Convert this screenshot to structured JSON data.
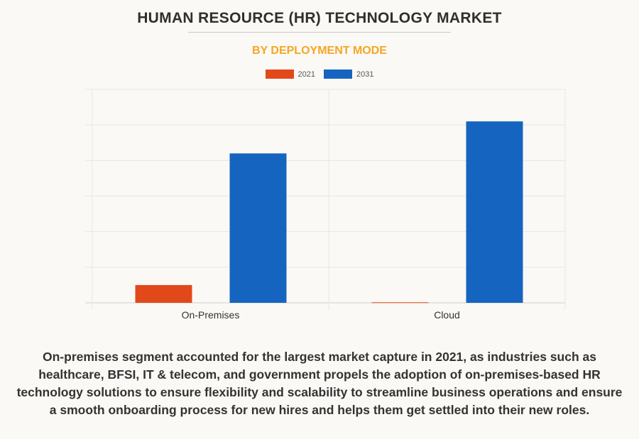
{
  "title": "HUMAN RESOURCE (HR) TECHNOLOGY MARKET",
  "subtitle": "BY DEPLOYMENT MODE",
  "caption": "On-premises segment accounted for the largest market capture in 2021, as industries such as healthcare, BFSI, IT & telecom, and government propels the adoption of on-premises-based HR technology solutions to ensure flexibility and scalability to streamline business operations and ensure a smooth onboarding process for new hires and helps them get settled into their new roles.",
  "chart_data": {
    "type": "bar",
    "categories": [
      "On-Premises",
      "Cloud"
    ],
    "series": [
      {
        "name": "2021",
        "color": "#e2491a",
        "values": [
          10,
          0.3
        ]
      },
      {
        "name": "2031",
        "color": "#1565c0",
        "values": [
          84,
          102
        ]
      }
    ],
    "ylim": [
      0,
      120
    ],
    "grid": true,
    "legend": "top-center",
    "xlabel": "",
    "ylabel": ""
  }
}
